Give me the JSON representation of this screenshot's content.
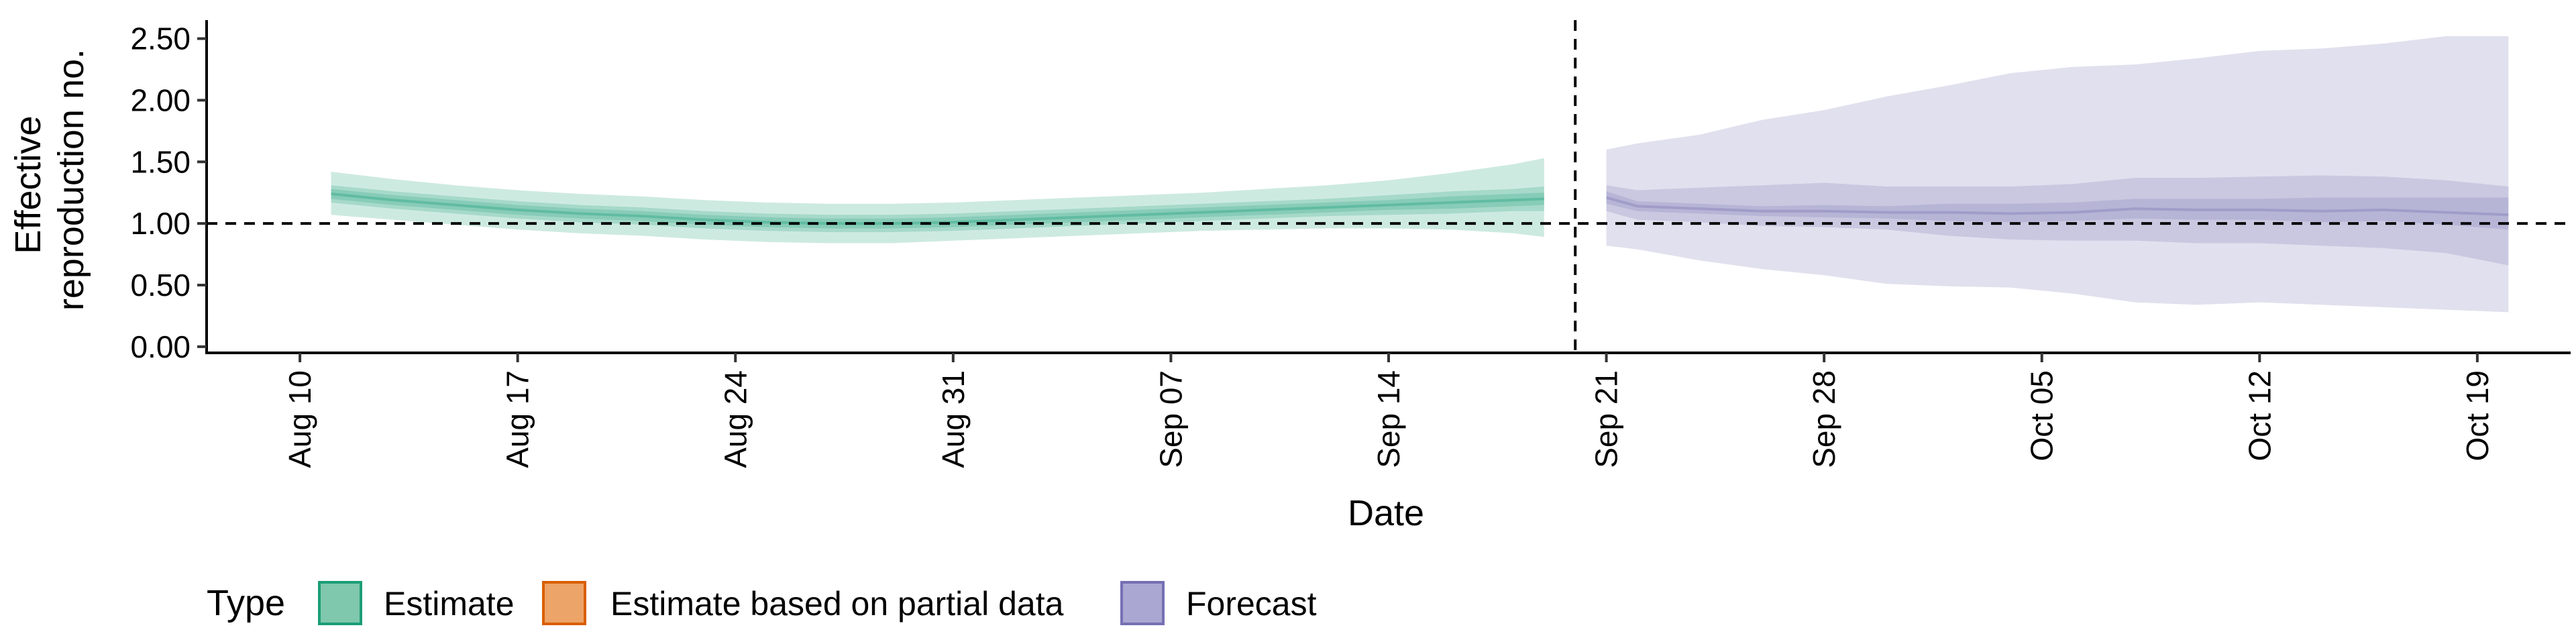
{
  "chart_data": {
    "type": "area",
    "ylabel_lines": [
      "Effective",
      "reproduction no."
    ],
    "xlabel": "Date",
    "x_start": "2020-08-07",
    "x_end": "2020-10-22",
    "ylim": [
      -0.05,
      2.65
    ],
    "y_ticks": [
      0.0,
      0.5,
      1.0,
      1.5,
      2.0,
      2.5
    ],
    "y_tick_labels": [
      "0.00",
      "0.50",
      "1.00",
      "1.50",
      "2.00",
      "2.50"
    ],
    "x_ticks": [
      "2020-08-10",
      "2020-08-17",
      "2020-08-24",
      "2020-08-31",
      "2020-09-07",
      "2020-09-14",
      "2020-09-21",
      "2020-09-28",
      "2020-10-05",
      "2020-10-12",
      "2020-10-19"
    ],
    "x_tick_labels": [
      "Aug 10",
      "Aug 17",
      "Aug 24",
      "Aug 31",
      "Sep 07",
      "Sep 14",
      "Sep 21",
      "Sep 28",
      "Oct 05",
      "Oct 12",
      "Oct 19"
    ],
    "reference_line_y": 1.0,
    "forecast_start_line": "2020-09-20",
    "grid": false,
    "legend_position": "bottom-left",
    "legend": {
      "title": "Type",
      "items": [
        {
          "label": "Estimate",
          "fill": "#7fc8ad",
          "stroke": "#1b9e77"
        },
        {
          "label": "Estimate based on partial data",
          "fill": "#eda469",
          "stroke": "#d95f02"
        },
        {
          "label": "Forecast",
          "fill": "#aaa7d2",
          "stroke": "#7570b3"
        }
      ]
    },
    "series": [
      {
        "name": "Estimate",
        "color": "#1b9e77",
        "dates": [
          "2020-08-11",
          "2020-08-13",
          "2020-08-15",
          "2020-08-17",
          "2020-08-19",
          "2020-08-21",
          "2020-08-23",
          "2020-08-25",
          "2020-08-27",
          "2020-08-29",
          "2020-08-31",
          "2020-09-02",
          "2020-09-04",
          "2020-09-06",
          "2020-09-08",
          "2020-09-10",
          "2020-09-12",
          "2020-09-14",
          "2020-09-16",
          "2020-09-18",
          "2020-09-19"
        ],
        "median": [
          1.24,
          1.19,
          1.15,
          1.11,
          1.08,
          1.06,
          1.03,
          1.01,
          1.0,
          1.0,
          1.01,
          1.03,
          1.05,
          1.07,
          1.09,
          1.11,
          1.13,
          1.15,
          1.17,
          1.19,
          1.2
        ],
        "ci20": [
          [
            1.2,
            1.28
          ],
          [
            1.15,
            1.23
          ],
          [
            1.11,
            1.19
          ],
          [
            1.07,
            1.15
          ],
          [
            1.04,
            1.12
          ],
          [
            1.02,
            1.1
          ],
          [
            0.99,
            1.07
          ],
          [
            0.97,
            1.05
          ],
          [
            0.96,
            1.04
          ],
          [
            0.96,
            1.04
          ],
          [
            0.97,
            1.05
          ],
          [
            0.99,
            1.07
          ],
          [
            1.01,
            1.09
          ],
          [
            1.03,
            1.11
          ],
          [
            1.05,
            1.13
          ],
          [
            1.07,
            1.15
          ],
          [
            1.09,
            1.17
          ],
          [
            1.11,
            1.19
          ],
          [
            1.12,
            1.22
          ],
          [
            1.14,
            1.24
          ],
          [
            1.15,
            1.25
          ]
        ],
        "ci50": [
          [
            1.17,
            1.31
          ],
          [
            1.12,
            1.26
          ],
          [
            1.08,
            1.22
          ],
          [
            1.04,
            1.18
          ],
          [
            1.01,
            1.15
          ],
          [
            0.99,
            1.13
          ],
          [
            0.96,
            1.1
          ],
          [
            0.94,
            1.08
          ],
          [
            0.93,
            1.07
          ],
          [
            0.93,
            1.07
          ],
          [
            0.94,
            1.08
          ],
          [
            0.96,
            1.1
          ],
          [
            0.98,
            1.12
          ],
          [
            1.0,
            1.14
          ],
          [
            1.02,
            1.16
          ],
          [
            1.04,
            1.18
          ],
          [
            1.06,
            1.2
          ],
          [
            1.07,
            1.23
          ],
          [
            1.08,
            1.26
          ],
          [
            1.1,
            1.28
          ],
          [
            1.1,
            1.3
          ]
        ],
        "ci90": [
          [
            1.07,
            1.42
          ],
          [
            1.03,
            1.36
          ],
          [
            0.99,
            1.31
          ],
          [
            0.95,
            1.27
          ],
          [
            0.92,
            1.24
          ],
          [
            0.9,
            1.22
          ],
          [
            0.87,
            1.19
          ],
          [
            0.85,
            1.17
          ],
          [
            0.84,
            1.16
          ],
          [
            0.84,
            1.16
          ],
          [
            0.86,
            1.17
          ],
          [
            0.88,
            1.19
          ],
          [
            0.9,
            1.21
          ],
          [
            0.92,
            1.23
          ],
          [
            0.94,
            1.25
          ],
          [
            0.95,
            1.28
          ],
          [
            0.96,
            1.31
          ],
          [
            0.96,
            1.35
          ],
          [
            0.95,
            1.41
          ],
          [
            0.92,
            1.48
          ],
          [
            0.89,
            1.53
          ]
        ]
      },
      {
        "name": "Forecast",
        "color": "#7570b3",
        "dates": [
          "2020-09-21",
          "2020-09-22",
          "2020-09-24",
          "2020-09-26",
          "2020-09-28",
          "2020-09-30",
          "2020-10-02",
          "2020-10-04",
          "2020-10-06",
          "2020-10-08",
          "2020-10-10",
          "2020-10-12",
          "2020-10-14",
          "2020-10-16",
          "2020-10-18",
          "2020-10-20"
        ],
        "median": [
          1.21,
          1.14,
          1.12,
          1.1,
          1.1,
          1.09,
          1.09,
          1.08,
          1.09,
          1.12,
          1.11,
          1.11,
          1.1,
          1.11,
          1.09,
          1.07
        ],
        "ci20": [
          [
            1.16,
            1.26
          ],
          [
            1.1,
            1.18
          ],
          [
            1.08,
            1.16
          ],
          [
            1.06,
            1.14
          ],
          [
            1.05,
            1.15
          ],
          [
            1.04,
            1.14
          ],
          [
            1.02,
            1.16
          ],
          [
            1.01,
            1.16
          ],
          [
            1.02,
            1.17
          ],
          [
            1.04,
            1.2
          ],
          [
            1.03,
            1.2
          ],
          [
            1.03,
            1.2
          ],
          [
            1.01,
            1.21
          ],
          [
            1.02,
            1.21
          ],
          [
            0.99,
            1.21
          ],
          [
            0.95,
            1.21
          ]
        ],
        "ci50": [
          [
            1.1,
            1.31
          ],
          [
            1.03,
            1.27
          ],
          [
            1.01,
            1.29
          ],
          [
            0.98,
            1.31
          ],
          [
            0.97,
            1.33
          ],
          [
            0.95,
            1.3
          ],
          [
            0.9,
            1.3
          ],
          [
            0.87,
            1.3
          ],
          [
            0.86,
            1.32
          ],
          [
            0.86,
            1.37
          ],
          [
            0.84,
            1.37
          ],
          [
            0.84,
            1.38
          ],
          [
            0.82,
            1.39
          ],
          [
            0.8,
            1.38
          ],
          [
            0.76,
            1.35
          ],
          [
            0.66,
            1.3
          ]
        ],
        "ci90": [
          [
            0.82,
            1.6
          ],
          [
            0.79,
            1.65
          ],
          [
            0.7,
            1.72
          ],
          [
            0.63,
            1.84
          ],
          [
            0.58,
            1.92
          ],
          [
            0.51,
            2.03
          ],
          [
            0.49,
            2.12
          ],
          [
            0.48,
            2.22
          ],
          [
            0.43,
            2.27
          ],
          [
            0.36,
            2.29
          ],
          [
            0.34,
            2.34
          ],
          [
            0.36,
            2.4
          ],
          [
            0.34,
            2.42
          ],
          [
            0.32,
            2.46
          ],
          [
            0.3,
            2.52
          ],
          [
            0.28,
            2.52
          ]
        ]
      }
    ]
  }
}
